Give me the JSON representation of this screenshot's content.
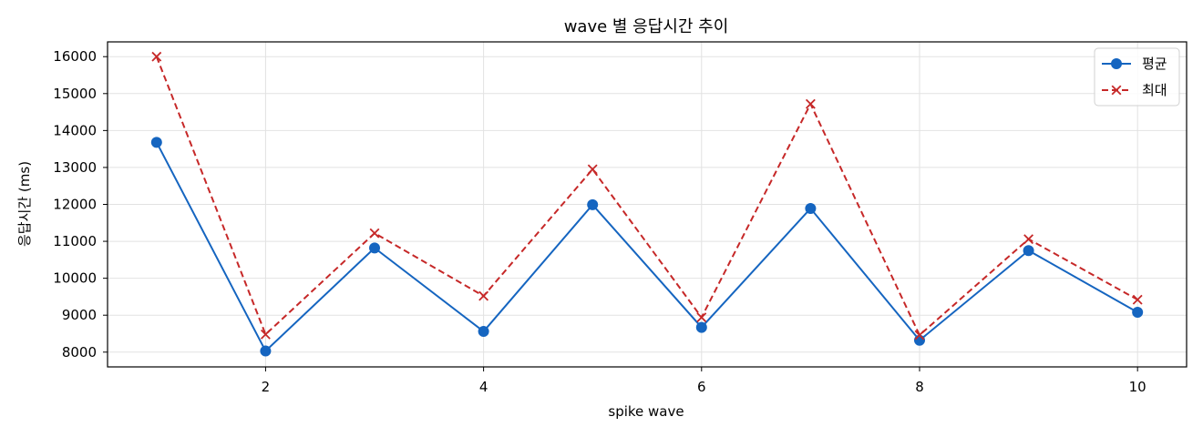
{
  "chart_data": {
    "type": "line",
    "title": "wave 별 응답시간 추이",
    "xlabel": "spike wave",
    "ylabel": "응답시간 (ms)",
    "x": [
      1,
      2,
      3,
      4,
      5,
      6,
      7,
      8,
      9,
      10
    ],
    "xticks": [
      2,
      4,
      6,
      8,
      10
    ],
    "xlim": [
      0.55,
      10.45
    ],
    "yticks": [
      8000,
      9000,
      10000,
      11000,
      12000,
      13000,
      14000,
      15000,
      16000
    ],
    "ylim": [
      7600,
      16400
    ],
    "grid": true,
    "legend_position": "top-right",
    "series": [
      {
        "name": "평균",
        "color": "#1565c0",
        "linestyle": "solid",
        "marker": "circle",
        "values": [
          13680,
          8030,
          10820,
          8560,
          11990,
          8670,
          11890,
          8320,
          10750,
          9080
        ]
      },
      {
        "name": "최대",
        "color": "#c62828",
        "linestyle": "dashed",
        "marker": "x",
        "values": [
          16000,
          8480,
          11220,
          9520,
          12950,
          8940,
          14720,
          8460,
          11060,
          9420
        ]
      }
    ]
  }
}
